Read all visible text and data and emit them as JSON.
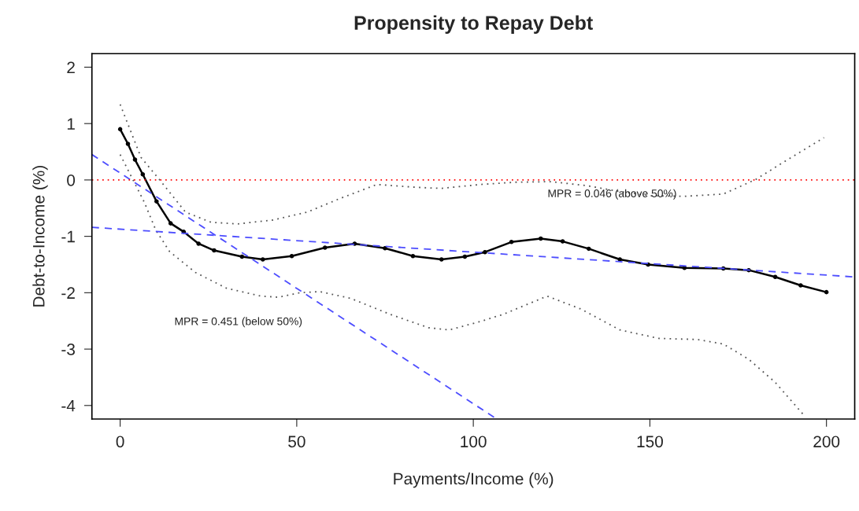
{
  "chart_data": {
    "type": "line",
    "title": "Propensity to Repay Debt",
    "xlabel": "Payments/Income (%)",
    "ylabel": "Debt-to-Income (%)",
    "xlim": [
      -8,
      208
    ],
    "ylim": [
      -4.24,
      2.24
    ],
    "xticks": [
      0,
      50,
      100,
      150,
      200
    ],
    "yticks": [
      -4,
      -3,
      -2,
      -1,
      0,
      1,
      2
    ],
    "grid": false,
    "legend": false,
    "series": [
      {
        "color": "#000000",
        "marker": "circle",
        "line_style": "solid",
        "x": [
          0,
          2.2,
          4.2,
          6.4,
          10.3,
          14.3,
          18,
          22.2,
          26.6,
          34.5,
          40.4,
          48.6,
          58,
          66.4,
          75,
          82.9,
          91,
          97.6,
          103.3,
          110.8,
          119.1,
          125.3,
          132.7,
          141.5,
          149.5,
          159.8,
          170.8,
          178,
          185.5,
          192.7,
          200
        ],
        "values": [
          0.9,
          0.64,
          0.36,
          0.1,
          -0.38,
          -0.77,
          -0.92,
          -1.13,
          -1.25,
          -1.36,
          -1.41,
          -1.35,
          -1.2,
          -1.13,
          -1.21,
          -1.35,
          -1.41,
          -1.36,
          -1.28,
          -1.1,
          -1.04,
          -1.09,
          -1.22,
          -1.41,
          -1.5,
          -1.56,
          -1.57,
          -1.6,
          -1.72,
          -1.87,
          -1.99
        ]
      },
      {
        "color": "#555555",
        "marker": "none",
        "line_style": "dotted",
        "x": [
          0,
          5.9,
          11.2,
          18.5,
          25.7,
          33.2,
          43.3,
          53,
          61.8,
          72.7,
          83.7,
          91,
          102,
          112,
          122,
          132,
          141,
          150,
          159.8,
          170.8,
          180,
          189,
          199.3
        ],
        "values": [
          1.34,
          0.4,
          0,
          -0.57,
          -0.75,
          -0.78,
          -0.71,
          -0.57,
          -0.34,
          -0.08,
          -0.13,
          -0.15,
          -0.08,
          -0.04,
          -0.03,
          -0.1,
          -0.2,
          -0.28,
          -0.29,
          -0.25,
          0.01,
          0.36,
          0.75
        ]
      },
      {
        "color": "#555555",
        "marker": "none",
        "line_style": "dotted",
        "x": [
          0,
          6.8,
          10.1,
          14,
          21.3,
          30.1,
          39.8,
          44.8,
          50.8,
          56.5,
          65.3,
          76.3,
          87.3,
          93.2,
          102,
          108.6,
          120.9,
          130.5,
          141.5,
          152.5,
          163.5,
          170.8,
          178,
          185.5,
          194
        ],
        "values": [
          0.45,
          -0.39,
          -0.89,
          -1.27,
          -1.64,
          -1.92,
          -2.06,
          -2.08,
          -2.0,
          -1.98,
          -2.1,
          -2.38,
          -2.62,
          -2.66,
          -2.51,
          -2.38,
          -2.06,
          -2.29,
          -2.66,
          -2.81,
          -2.83,
          -2.91,
          -3.18,
          -3.59,
          -4.2
        ]
      },
      {
        "color": "#4d4dff",
        "marker": "none",
        "line_style": "dashed",
        "x": [
          -8,
          106.4
        ],
        "values": [
          0.45,
          -4.23
        ]
      },
      {
        "color": "#4d4dff",
        "marker": "none",
        "line_style": "dashed",
        "x": [
          -8,
          208
        ],
        "values": [
          -0.84,
          -1.72
        ]
      }
    ],
    "ref_lines": [
      {
        "axis": "y",
        "value": 0,
        "color": "#ff0000",
        "line_style": "dotted"
      }
    ],
    "annotations": [
      "MPR = 0.451 (below 50%)",
      "MPR = 0.046 (above 50%)"
    ]
  }
}
